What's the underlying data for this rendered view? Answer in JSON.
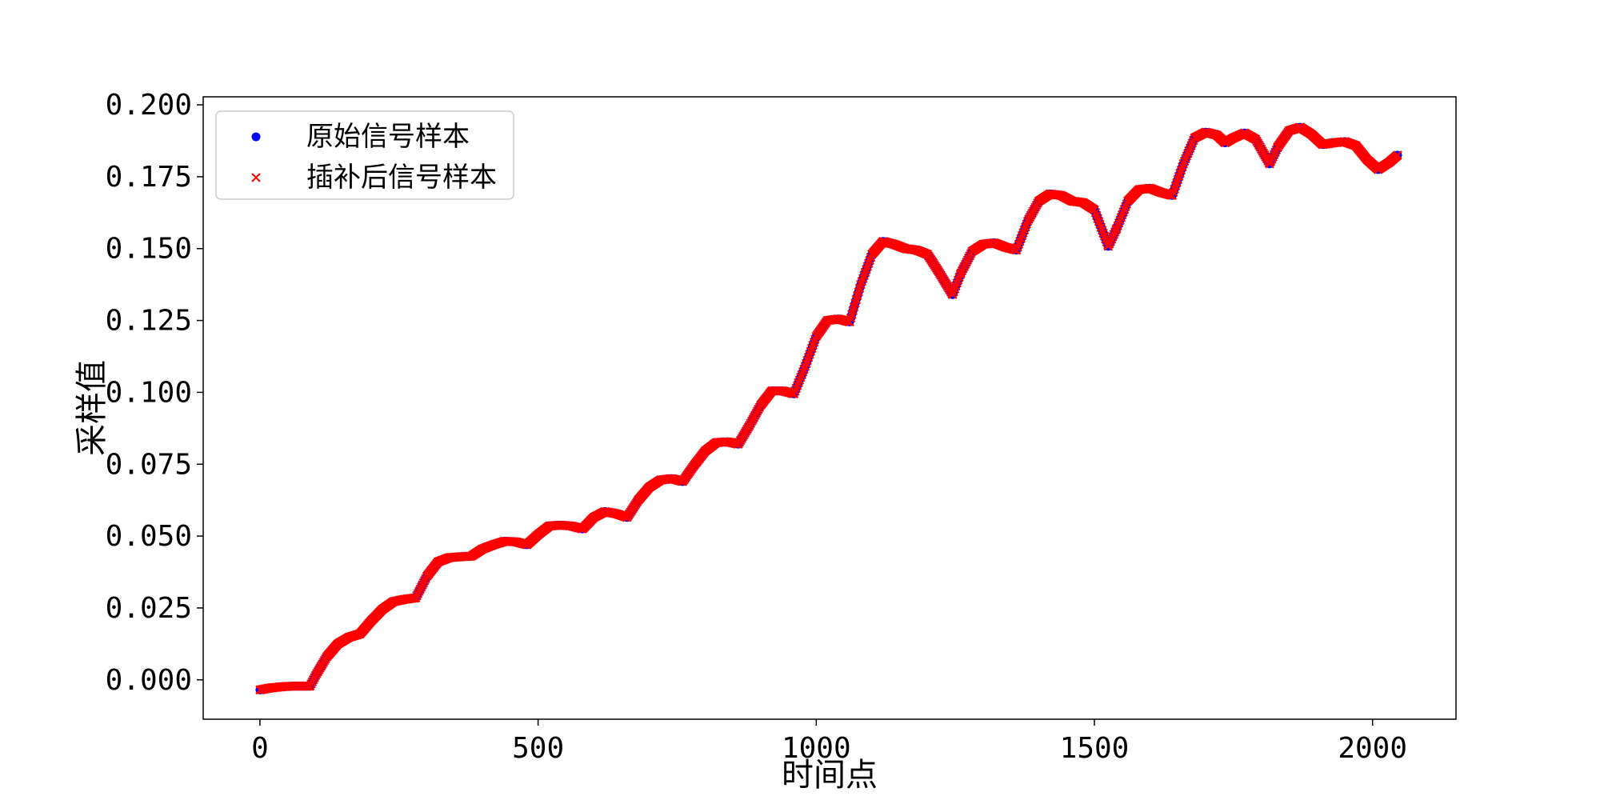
{
  "chart_data": {
    "type": "scatter",
    "xlabel": "时间点",
    "ylabel": "采样值",
    "xlim": [
      -102,
      2150
    ],
    "ylim": [
      -0.0137,
      0.2028
    ],
    "xticks": [
      0,
      500,
      1000,
      1500,
      2000
    ],
    "yticks": [
      0.0,
      0.025,
      0.05,
      0.075,
      0.1,
      0.125,
      0.15,
      0.175,
      0.2
    ],
    "xtick_labels": [
      "0",
      "500",
      "1000",
      "1500",
      "2000"
    ],
    "ytick_labels": [
      "0.000",
      "0.025",
      "0.050",
      "0.075",
      "0.100",
      "0.125",
      "0.150",
      "0.175",
      "0.200"
    ],
    "legend_position": "upper-left",
    "grid": false,
    "series": [
      {
        "name": "原始信号样本",
        "marker": "circle",
        "color": "#0000ff",
        "x": [
          0,
          20,
          40,
          60,
          80,
          90,
          100,
          120,
          140,
          160,
          180,
          200,
          220,
          240,
          260,
          280,
          300,
          320,
          340,
          360,
          380,
          400,
          420,
          440,
          460,
          480,
          500,
          520,
          540,
          560,
          580,
          600,
          620,
          640,
          660,
          680,
          700,
          720,
          740,
          760,
          780,
          800,
          820,
          840,
          860,
          880,
          900,
          920,
          940,
          960,
          980,
          1000,
          1020,
          1040,
          1060,
          1080,
          1100,
          1120,
          1140,
          1160,
          1180,
          1200,
          1220,
          1245,
          1260,
          1280,
          1300,
          1320,
          1340,
          1360,
          1380,
          1400,
          1420,
          1440,
          1460,
          1480,
          1500,
          1525,
          1540,
          1560,
          1580,
          1600,
          1620,
          1640,
          1660,
          1680,
          1700,
          1720,
          1735,
          1750,
          1770,
          1790,
          1815,
          1830,
          1850,
          1870,
          1890,
          1910,
          1930,
          1950,
          1970,
          1990,
          2010,
          2030,
          2045
        ],
        "y": [
          -0.0035,
          -0.0028,
          -0.0024,
          -0.0022,
          -0.0022,
          -0.0022,
          0.0015,
          0.008,
          0.0125,
          0.0148,
          0.016,
          0.0205,
          0.0245,
          0.0272,
          0.028,
          0.0285,
          0.036,
          0.041,
          0.0425,
          0.0428,
          0.043,
          0.0455,
          0.047,
          0.0482,
          0.048,
          0.047,
          0.0505,
          0.0535,
          0.0538,
          0.0535,
          0.0525,
          0.0565,
          0.0585,
          0.0578,
          0.0565,
          0.0625,
          0.067,
          0.0695,
          0.07,
          0.069,
          0.0745,
          0.0795,
          0.0825,
          0.0828,
          0.082,
          0.0885,
          0.0955,
          0.1005,
          0.1005,
          0.0995,
          0.109,
          0.1195,
          0.125,
          0.1255,
          0.1245,
          0.1375,
          0.148,
          0.1525,
          0.1515,
          0.15,
          0.1495,
          0.148,
          0.142,
          0.134,
          0.1415,
          0.149,
          0.1515,
          0.152,
          0.1505,
          0.1495,
          0.1595,
          0.1665,
          0.169,
          0.1685,
          0.1665,
          0.166,
          0.1635,
          0.1508,
          0.157,
          0.1665,
          0.1705,
          0.171,
          0.1695,
          0.1685,
          0.1795,
          0.1885,
          0.1905,
          0.1895,
          0.1868,
          0.1885,
          0.1902,
          0.188,
          0.1795,
          0.1855,
          0.191,
          0.1922,
          0.1898,
          0.1862,
          0.1868,
          0.1872,
          0.1858,
          0.181,
          0.1775,
          0.18,
          0.1825
        ]
      },
      {
        "name": "插补后信号样本",
        "marker": "x",
        "color": "#ff0000",
        "x": [
          0,
          20,
          40,
          60,
          80,
          90,
          100,
          120,
          140,
          160,
          180,
          200,
          220,
          240,
          260,
          280,
          300,
          320,
          340,
          360,
          380,
          400,
          420,
          440,
          460,
          480,
          500,
          520,
          540,
          560,
          580,
          600,
          620,
          640,
          660,
          680,
          700,
          720,
          740,
          760,
          780,
          800,
          820,
          840,
          860,
          880,
          900,
          920,
          940,
          960,
          980,
          1000,
          1020,
          1040,
          1060,
          1080,
          1100,
          1120,
          1140,
          1160,
          1180,
          1200,
          1220,
          1245,
          1260,
          1280,
          1300,
          1320,
          1340,
          1360,
          1380,
          1400,
          1420,
          1440,
          1460,
          1480,
          1500,
          1525,
          1540,
          1560,
          1580,
          1600,
          1620,
          1640,
          1660,
          1680,
          1700,
          1720,
          1735,
          1750,
          1770,
          1790,
          1815,
          1830,
          1850,
          1870,
          1890,
          1910,
          1930,
          1950,
          1970,
          1990,
          2010,
          2030,
          2045
        ],
        "y": [
          -0.0035,
          -0.0028,
          -0.0024,
          -0.0022,
          -0.0022,
          -0.0022,
          0.0015,
          0.008,
          0.0125,
          0.0148,
          0.016,
          0.0205,
          0.0245,
          0.0272,
          0.028,
          0.0285,
          0.036,
          0.041,
          0.0425,
          0.0428,
          0.043,
          0.0455,
          0.047,
          0.0482,
          0.048,
          0.047,
          0.0505,
          0.0535,
          0.0538,
          0.0535,
          0.0525,
          0.0565,
          0.0585,
          0.0578,
          0.0565,
          0.0625,
          0.067,
          0.0695,
          0.07,
          0.069,
          0.0745,
          0.0795,
          0.0825,
          0.0828,
          0.082,
          0.0885,
          0.0955,
          0.1005,
          0.1005,
          0.0995,
          0.109,
          0.1195,
          0.125,
          0.1255,
          0.1245,
          0.1375,
          0.148,
          0.1525,
          0.1515,
          0.15,
          0.1495,
          0.148,
          0.142,
          0.134,
          0.1415,
          0.149,
          0.1515,
          0.152,
          0.1505,
          0.1495,
          0.1595,
          0.1665,
          0.169,
          0.1685,
          0.1665,
          0.166,
          0.1635,
          0.1508,
          0.157,
          0.1665,
          0.1705,
          0.171,
          0.1695,
          0.1685,
          0.1795,
          0.1885,
          0.1905,
          0.1895,
          0.1868,
          0.1885,
          0.1902,
          0.188,
          0.1795,
          0.1855,
          0.191,
          0.1922,
          0.1898,
          0.1862,
          0.1868,
          0.1872,
          0.1858,
          0.181,
          0.1775,
          0.18,
          0.1825
        ]
      }
    ]
  }
}
